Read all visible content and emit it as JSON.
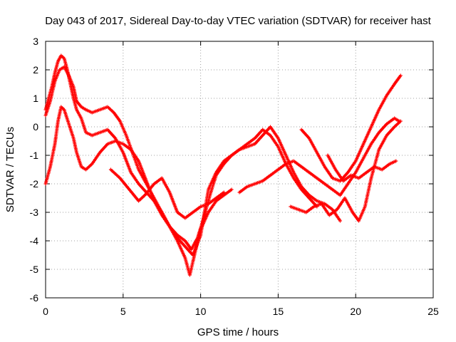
{
  "chart_data": {
    "type": "scatter",
    "title": "Day 043 of 2017, Sidereal Day-to-day VTEC variation (SDTVAR) for receiver hast",
    "xlabel": "GPS time / hours",
    "ylabel": "SDTVAR / TECUs",
    "xlim": [
      0,
      25
    ],
    "ylim": [
      -6,
      3
    ],
    "xticks": [
      "0",
      "5",
      "10",
      "15",
      "20",
      "25"
    ],
    "yticks": [
      "-6",
      "-5",
      "-4",
      "-3",
      "-2",
      "-1",
      "0",
      "1",
      "2",
      "3"
    ],
    "grid": true,
    "legend": "none",
    "marker": "plus",
    "color": "#ff0000",
    "series": [
      {
        "x": [
          0.0,
          0.2,
          0.4,
          0.6,
          0.8,
          1.0,
          1.2,
          1.4,
          1.6,
          1.8,
          2.0,
          2.3,
          2.6,
          3.0,
          3.5,
          4.0,
          4.5,
          5.0,
          5.5,
          6.0,
          6.5,
          7.0,
          7.5,
          8.0,
          8.5,
          9.0,
          9.3,
          9.6,
          10.0,
          10.5,
          11.0,
          11.5,
          12.0
        ],
        "y": [
          0.6,
          1.0,
          1.4,
          1.9,
          2.3,
          2.5,
          2.4,
          2.0,
          1.5,
          1.0,
          0.6,
          0.3,
          -0.2,
          -0.3,
          -0.2,
          -0.1,
          -0.4,
          -0.9,
          -1.6,
          -2.0,
          -2.3,
          -2.6,
          -3.0,
          -3.5,
          -4.0,
          -4.6,
          -5.2,
          -4.5,
          -3.6,
          -3.0,
          -2.6,
          -2.4,
          -2.2
        ]
      },
      {
        "x": [
          0.0,
          0.3,
          0.6,
          0.9,
          1.2,
          1.5,
          1.8,
          2.0,
          2.3,
          2.6,
          3.0,
          3.5,
          4.0,
          4.4,
          4.8,
          5.2,
          5.6,
          6.0,
          6.5,
          7.0,
          7.5,
          8.0,
          8.5,
          9.0,
          9.5,
          10.0,
          10.5,
          11.0,
          11.5,
          12.0,
          12.5,
          13.0,
          13.5,
          14.0,
          14.5,
          15.0,
          15.5,
          16.0,
          16.5,
          17.0,
          17.5
        ],
        "y": [
          0.4,
          0.9,
          1.6,
          2.0,
          2.1,
          1.8,
          1.4,
          0.9,
          0.7,
          0.6,
          0.5,
          0.6,
          0.7,
          0.5,
          0.2,
          -0.3,
          -0.9,
          -1.5,
          -2.0,
          -2.5,
          -3.0,
          -3.5,
          -3.9,
          -4.2,
          -4.5,
          -3.8,
          -2.2,
          -1.6,
          -1.2,
          -1.0,
          -0.8,
          -0.6,
          -0.4,
          -0.1,
          -0.3,
          -0.7,
          -1.3,
          -1.8,
          -2.2,
          -2.5,
          -2.8
        ]
      },
      {
        "x": [
          0.0,
          0.3,
          0.6,
          0.8,
          1.0,
          1.2,
          1.5,
          1.8,
          2.0,
          2.3,
          2.6,
          3.0,
          3.5,
          4.0,
          4.5,
          5.0,
          5.5,
          6.0,
          6.5,
          7.0,
          7.5,
          8.0,
          8.5,
          9.0,
          9.4,
          9.8,
          10.2,
          10.6,
          11.0,
          11.5,
          12.0,
          12.5,
          13.0,
          13.5,
          14.0,
          14.5,
          15.0,
          15.5,
          16.0,
          16.5,
          17.0,
          17.5,
          18.0,
          18.5,
          19.0
        ],
        "y": [
          -2.0,
          -1.4,
          -0.6,
          0.2,
          0.7,
          0.6,
          0.1,
          -0.4,
          -0.9,
          -1.4,
          -1.5,
          -1.3,
          -0.9,
          -0.6,
          -0.5,
          -0.6,
          -0.8,
          -1.2,
          -1.9,
          -2.6,
          -3.1,
          -3.5,
          -3.8,
          -4.0,
          -4.3,
          -3.9,
          -3.2,
          -2.4,
          -1.7,
          -1.3,
          -1.0,
          -0.8,
          -0.7,
          -0.6,
          -0.3,
          0.0,
          -0.4,
          -1.0,
          -1.6,
          -2.1,
          -2.4,
          -2.6,
          -2.7,
          -2.9,
          -3.3
        ]
      },
      {
        "x": [
          4.2,
          4.8,
          5.4,
          6.0,
          6.4,
          7.0,
          7.5,
          8.0,
          8.5,
          9.0,
          9.5,
          10.0,
          10.5,
          11.0,
          11.5
        ],
        "y": [
          -1.5,
          -1.8,
          -2.2,
          -2.6,
          -2.4,
          -2.0,
          -1.8,
          -2.3,
          -3.0,
          -3.2,
          -3.0,
          -2.8,
          -2.7,
          -2.5,
          -2.3
        ]
      },
      {
        "x": [
          12.5,
          13.0,
          13.5,
          14.0,
          14.5,
          15.0,
          15.5,
          16.0,
          16.5,
          17.0,
          17.5,
          18.0,
          18.5,
          19.0,
          19.5,
          20.0,
          20.5,
          21.0,
          21.5,
          22.0,
          22.5,
          22.8
        ],
        "y": [
          -2.3,
          -2.1,
          -2.0,
          -1.9,
          -1.7,
          -1.5,
          -1.3,
          -1.2,
          -1.4,
          -1.6,
          -1.8,
          -2.0,
          -2.2,
          -2.4,
          -2.0,
          -1.6,
          -1.1,
          -0.6,
          -0.2,
          0.1,
          0.3,
          0.2
        ]
      },
      {
        "x": [
          16.5,
          17.0,
          17.5,
          18.0,
          18.5,
          19.0,
          19.5,
          20.0,
          20.5,
          21.0,
          21.5,
          22.0,
          22.5,
          22.9
        ],
        "y": [
          -0.1,
          -0.4,
          -0.9,
          -1.4,
          -1.8,
          -1.9,
          -1.6,
          -1.2,
          -0.6,
          0.0,
          0.6,
          1.1,
          1.5,
          1.8
        ]
      },
      {
        "x": [
          15.8,
          16.3,
          16.8,
          17.3,
          17.8,
          18.3,
          18.8,
          19.3,
          19.8,
          20.2,
          20.6,
          21.0,
          21.5,
          22.0,
          22.5,
          22.9
        ],
        "y": [
          -2.8,
          -2.9,
          -3.0,
          -2.8,
          -2.7,
          -3.1,
          -2.9,
          -2.5,
          -3.0,
          -3.3,
          -2.8,
          -1.8,
          -0.8,
          -0.3,
          0.0,
          0.2
        ]
      },
      {
        "x": [
          18.2,
          18.7,
          19.2,
          19.7,
          20.2,
          20.7,
          21.2,
          21.7,
          22.2,
          22.6
        ],
        "y": [
          -1.0,
          -1.5,
          -1.9,
          -1.7,
          -1.8,
          -1.6,
          -1.4,
          -1.5,
          -1.3,
          -1.2
        ]
      }
    ]
  }
}
